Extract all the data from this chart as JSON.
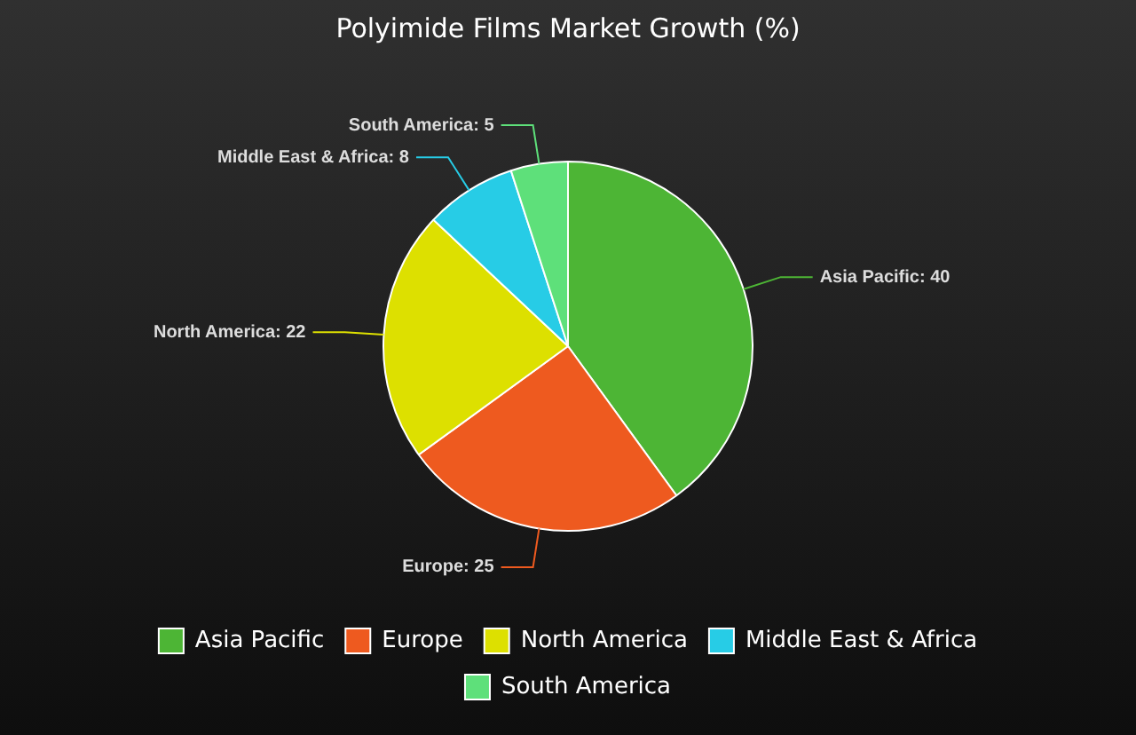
{
  "chart_data": {
    "type": "pie",
    "title": "Polyimide Films Market Growth (%)",
    "categories": [
      "Asia Pacific",
      "Europe",
      "North America",
      "Middle East & Africa",
      "South America"
    ],
    "values": [
      40,
      25,
      22,
      8,
      5
    ],
    "value_labels": [
      "Asia Pacific: 40",
      "Europe: 25",
      "North America: 22",
      "Middle East & Africa: 8",
      "South America: 5"
    ],
    "colors": [
      "#4db535",
      "#ee5a1f",
      "#dde000",
      "#27cce6",
      "#5ee07a"
    ],
    "legend": "bottom"
  }
}
